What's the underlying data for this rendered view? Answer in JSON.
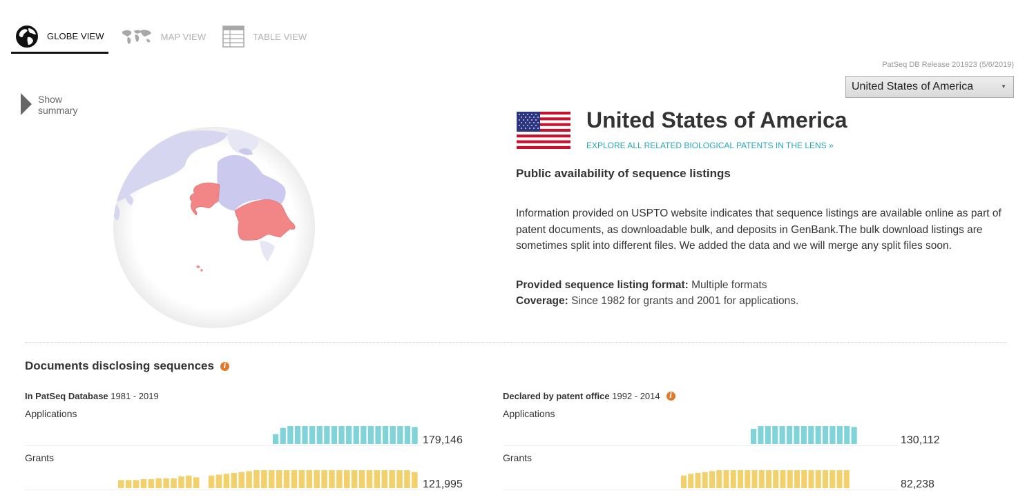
{
  "tabs": [
    {
      "label": "GLOBE VIEW",
      "icon": "globe-icon",
      "active": true
    },
    {
      "label": "MAP VIEW",
      "icon": "world-map-icon",
      "active": false
    },
    {
      "label": "TABLE VIEW",
      "icon": "table-icon",
      "active": false
    }
  ],
  "release": "PatSeq DB Release 201923 (5/6/2019)",
  "country_select": {
    "value": "United States of America"
  },
  "summary": {
    "label": "Show summary"
  },
  "country": {
    "name": "United States of America",
    "flag": "us-flag",
    "explore_link": "EXPLORE ALL RELATED BIOLOGICAL PATENTS IN THE LENS »"
  },
  "availability": {
    "heading": "Public availability of sequence listings",
    "description": "Information provided on USPTO website indicates that sequence listings are available online as part of patent documents, as downloadable bulk, and deposits in GenBank.The bulk download listings are sometimes split into different files. We added the data and we will merge any split files soon.",
    "format_label": "Provided sequence listing format:",
    "format_value": "Multiple formats",
    "coverage_label": "Coverage:",
    "coverage_value": "Since 1982 for grants and 2001 for applications."
  },
  "documents": {
    "heading": "Documents disclosing sequences",
    "patseq": {
      "title": "In PatSeq Database",
      "range": "1981 - 2019",
      "applications_label": "Applications",
      "applications_total": "179,146",
      "grants_label": "Grants",
      "grants_total": "121,995"
    },
    "declared": {
      "title": "Declared by patent office",
      "range": "1992 - 2014",
      "applications_label": "Applications",
      "applications_total": "130,112",
      "grants_label": "Grants",
      "grants_total": "82,238"
    }
  },
  "colors": {
    "applications": "#7fd3d9",
    "grants": "#f2d06b",
    "highlight_country": "#f28585",
    "land": "#d6d6f0",
    "link": "#27a8b8",
    "info_icon": "#e0792b"
  },
  "chart_data": [
    {
      "type": "bar",
      "series": [
        {
          "values": [
            0.55,
            0.9,
            1,
            1,
            1,
            1,
            1,
            1,
            1,
            1,
            1,
            1,
            1,
            1,
            1,
            1,
            1,
            1,
            1,
            0.95
          ]
        }
      ]
    },
    {
      "type": "bar",
      "series": [
        {
          "values": [
            0.45,
            0.45,
            0.45,
            0.5,
            0.5,
            0.55,
            0.55,
            0.55,
            0.65,
            0.7,
            0.6,
            0,
            0.7,
            0.75,
            0.8,
            0.85,
            0.9,
            0.95,
            1,
            1,
            1,
            1,
            1,
            1,
            1,
            1,
            1,
            1,
            1,
            1,
            1,
            1,
            1,
            1,
            1,
            1,
            1,
            1,
            1,
            0.9
          ]
        }
      ]
    },
    {
      "type": "bar",
      "series": [
        {
          "values": [
            0.85,
            1,
            1,
            1,
            1,
            1,
            1,
            1,
            1,
            1,
            1,
            1,
            1,
            1,
            0.95
          ]
        }
      ]
    },
    {
      "type": "bar",
      "series": [
        {
          "values": [
            0.7,
            0.8,
            0.85,
            0.9,
            0.95,
            1,
            1,
            1,
            1,
            1,
            1,
            1,
            1,
            1,
            1,
            1,
            1,
            1,
            1,
            1,
            1,
            1,
            1,
            1
          ]
        }
      ]
    }
  ]
}
